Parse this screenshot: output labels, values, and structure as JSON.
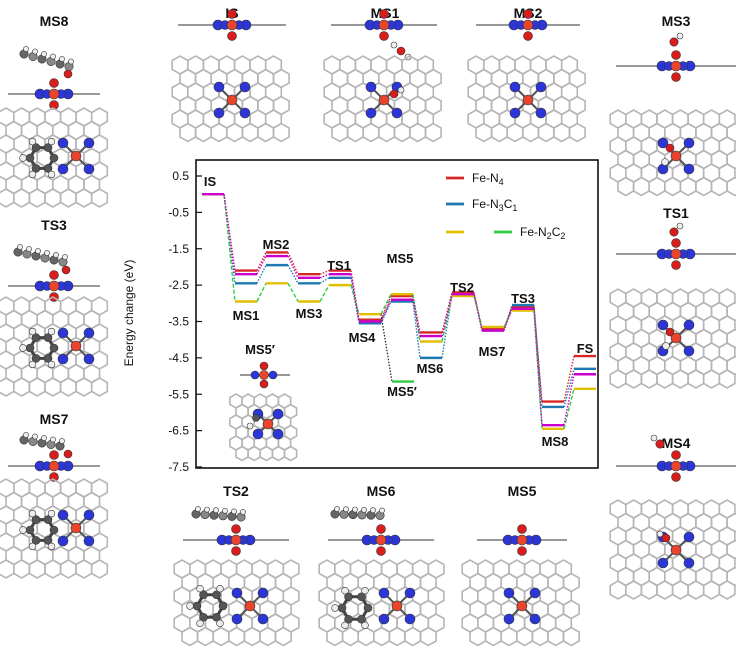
{
  "chart_data": {
    "type": "line",
    "ylabel": "Energy change (eV)",
    "ylim": [
      -7.5,
      1.0
    ],
    "yticks": [
      "0.5",
      "-0.5",
      "-1.5",
      "-2.5",
      "-3.5",
      "-4.5",
      "-5.5",
      "-6.5",
      "-7.5"
    ],
    "legend_position": "top-right",
    "series": [
      {
        "name_main": "Fe-N",
        "name_sub": "4",
        "name_rest": "",
        "name_sub2": "",
        "color": "#d62728",
        "dash": "dot",
        "values": [
          0.0,
          -2.1,
          -1.6,
          -2.2,
          -2.1,
          -3.45,
          -2.8,
          -3.8,
          -2.7,
          -3.7,
          -3.1,
          -5.7,
          -4.45
        ]
      },
      {
        "name_main": "Fe-N",
        "name_sub": "3",
        "name_rest": "C",
        "name_sub2": "1",
        "color": "#1f77b4",
        "dash": "dot",
        "values": [
          0.0,
          -2.45,
          -1.95,
          -2.45,
          -2.3,
          -3.55,
          -2.95,
          -4.5,
          -2.75,
          -3.75,
          -3.05,
          -5.85,
          -4.8
        ]
      },
      {
        "name_main": "Fe-N",
        "name_sub": "2",
        "name_rest": "C",
        "name_sub2": "2",
        "color": "#e0c000",
        "color2": "#2ecc40",
        "dash": "dash",
        "values": [
          0.0,
          -2.95,
          -2.45,
          -2.95,
          -2.5,
          -3.3,
          -2.75,
          -4.05,
          -2.8,
          -3.65,
          -3.2,
          -6.45,
          -5.35
        ]
      }
    ],
    "violet_series": {
      "color": "#cc00cc",
      "values": [
        0.0,
        -2.2,
        -1.7,
        -2.3,
        -2.2,
        -3.5,
        -2.9,
        -3.9,
        -2.75,
        -3.75,
        -3.15,
        -6.35,
        -4.95
      ]
    },
    "ms5prime_branch": {
      "from_level": -3.3,
      "value": -5.15
    },
    "level_labels": [
      "IS",
      "MS1",
      "MS2",
      "MS3",
      "TS1",
      "MS4",
      "MS5",
      "MS6",
      "TS2",
      "MS7",
      "TS3",
      "MS8",
      "FS"
    ],
    "extra_label": "MS5′",
    "inset_label": "MS5′"
  },
  "structures": {
    "top": [
      "IS",
      "MS1",
      "MS2"
    ],
    "top_right": "MS3",
    "left": [
      "MS8",
      "TS3",
      "MS7"
    ],
    "right": [
      "TS1",
      "MS4"
    ],
    "bottom": [
      "TS2",
      "MS6",
      "MS5"
    ]
  },
  "colors": {
    "fe": "#e8452c",
    "n": "#2b35d8",
    "o": "#d81d1d",
    "c": "#555555",
    "h": "#eeeeee",
    "graphene": "#b5b5b5",
    "sheet": "#777777"
  }
}
